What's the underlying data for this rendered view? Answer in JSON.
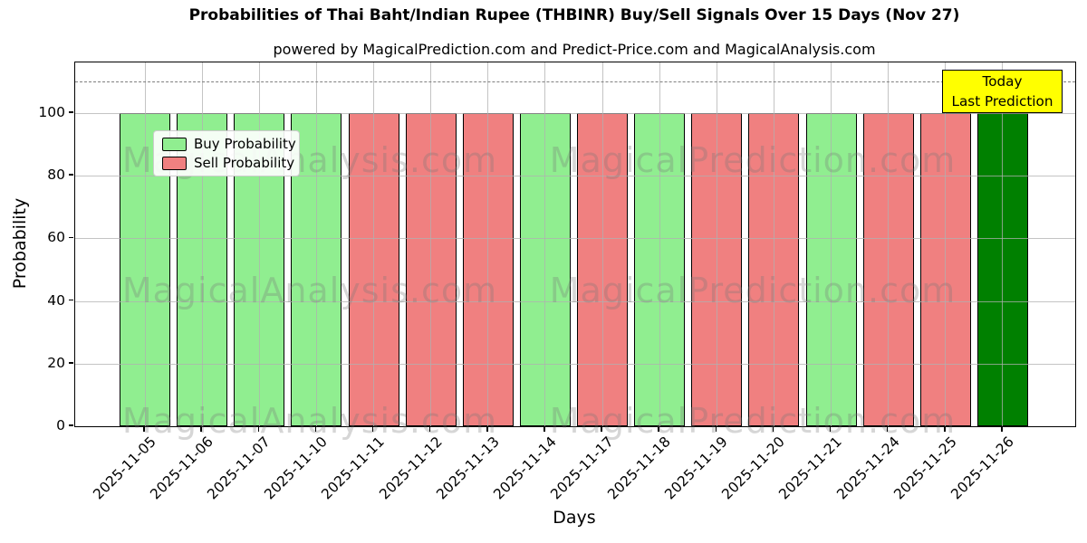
{
  "watermarks": {
    "left_text": "MagicalAnalysis.com",
    "right_text": "MagicalPrediction.com"
  },
  "annotation": {
    "line1": "Today",
    "line2": "Last Prediction",
    "bg_color": "#FFFF00",
    "border_color": "#000000"
  },
  "legend": {
    "items": [
      {
        "label": "Buy Probability",
        "color": "#90EE90"
      },
      {
        "label": "Sell Probability",
        "color": "#F08080"
      }
    ]
  },
  "chart_data": {
    "type": "bar",
    "title": "Probabilities of Thai Baht/Indian Rupee (THBINR) Buy/Sell Signals Over 15 Days (Nov 27)",
    "subtitle": "powered by MagicalPrediction.com and Predict-Price.com and MagicalAnalysis.com",
    "xlabel": "Days",
    "ylabel": "Probability",
    "ylim": [
      0,
      116
    ],
    "yticks": [
      0,
      20,
      40,
      60,
      80,
      100
    ],
    "grid": true,
    "legend_position": "upper left",
    "dashed_line_y": 110,
    "categories": [
      "2025-11-05",
      "2025-11-06",
      "2025-11-07",
      "2025-11-10",
      "2025-11-11",
      "2025-11-12",
      "2025-11-13",
      "2025-11-14",
      "2025-11-17",
      "2025-11-18",
      "2025-11-19",
      "2025-11-20",
      "2025-11-21",
      "2025-11-24",
      "2025-11-25",
      "2025-11-26"
    ],
    "values": [
      100,
      100,
      100,
      100,
      100,
      100,
      100,
      100,
      100,
      100,
      100,
      100,
      100,
      100,
      100,
      100
    ],
    "signals": [
      "buy",
      "buy",
      "buy",
      "buy",
      "sell",
      "sell",
      "sell",
      "buy",
      "sell",
      "buy",
      "sell",
      "sell",
      "buy",
      "sell",
      "sell",
      "today"
    ],
    "signal_colors": {
      "buy": "#90EE90",
      "sell": "#F08080",
      "today": "#008000"
    },
    "bar_edge_color": "#000000"
  }
}
